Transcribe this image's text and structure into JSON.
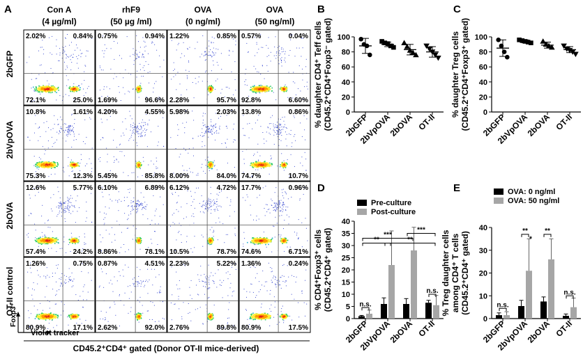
{
  "panel_labels": [
    "A",
    "B",
    "C",
    "D",
    "E"
  ],
  "A": {
    "columns": [
      {
        "name": "Con A",
        "sub": "(4 µg/ml)"
      },
      {
        "name": "rhF9",
        "sub": "(50 µg /ml)"
      },
      {
        "name": "OVA",
        "sub": "(0 ng/ml)"
      },
      {
        "name": "OVA",
        "sub": "(50 ng/ml)"
      }
    ],
    "rows": [
      "2bGFP",
      "2bVpOVA",
      "2bOVA",
      "OT-II control"
    ],
    "quadrants": [
      [
        [
          "2.02%",
          "0.84%",
          "72.1%",
          "25.0%"
        ],
        [
          "0.75%",
          "0.94%",
          "1.69%",
          "96.6%"
        ],
        [
          "1.22%",
          "0.85%",
          "2.28%",
          "95.7%"
        ],
        [
          "0.57%",
          "0.04%",
          "92.8%",
          "6.60%"
        ]
      ],
      [
        [
          "10.8%",
          "1.61%",
          "75.3%",
          "12.3%"
        ],
        [
          "4.20%",
          "4.55%",
          "5.45%",
          "85.8%"
        ],
        [
          "5.98%",
          "2.03%",
          "8.00%",
          "84.0%"
        ],
        [
          "13.8%",
          "0.86%",
          "74.7%",
          "10.7%"
        ]
      ],
      [
        [
          "12.6%",
          "5.77%",
          "57.4%",
          "24.2%"
        ],
        [
          "6.10%",
          "6.89%",
          "8.86%",
          "78.1%"
        ],
        [
          "6.12%",
          "4.72%",
          "10.5%",
          "78.7%"
        ],
        [
          "17.7%",
          "0.96%",
          "74.6%",
          "6.71%"
        ]
      ],
      [
        [
          "1.26%",
          "0.75%",
          "80.9%",
          "17.1%"
        ],
        [
          "0.87%",
          "4.51%",
          "2.62%",
          "92.0%"
        ],
        [
          "2.23%",
          "5.22%",
          "2.76%",
          "89.8%"
        ],
        [
          "1.36%",
          "0.24%",
          "80.9%",
          "17.5%"
        ]
      ]
    ],
    "y_axis": "Foxp3⁺",
    "x_axis": "Violet tracker",
    "footer": "CD45.2⁺CD4⁺ gated (Donor OT-II mice-derived)"
  },
  "chart_data": [
    {
      "panel": "B",
      "type": "scatter",
      "categories": [
        "2bGFP",
        "2bVpOVA",
        "2bOVA",
        "OT-II"
      ],
      "ylabel": [
        "% daughter CD4⁺ Teff cells",
        "(CD45.2⁺CD4⁺Foxp3⁻ gated)"
      ],
      "ylim": [
        0,
        100
      ],
      "yticks": [
        0,
        20,
        40,
        60,
        80,
        100
      ],
      "markers": [
        "circle",
        "square",
        "triangle",
        "inverted-triangle"
      ],
      "points": [
        [
          97,
          90,
          88,
          76
        ],
        [
          94,
          92,
          91,
          88,
          86
        ],
        [
          92,
          87,
          82,
          79,
          76
        ],
        [
          88,
          84,
          80,
          76,
          72
        ]
      ],
      "mean": [
        88,
        90,
        83,
        80
      ],
      "sd": [
        10,
        3,
        7,
        7
      ]
    },
    {
      "panel": "C",
      "type": "scatter",
      "categories": [
        "2bGFP",
        "2bVpOVA",
        "2bOVA",
        "OT-II"
      ],
      "ylabel": [
        "% daughter Treg  cells",
        "(CD45.2⁺CD4⁺Foxp3⁺ gated)"
      ],
      "ylim": [
        0,
        100
      ],
      "yticks": [
        0,
        20,
        40,
        60,
        80,
        100
      ],
      "markers": [
        "circle",
        "square",
        "triangle",
        "inverted-triangle"
      ],
      "points": [
        [
          96,
          88,
          80,
          73
        ],
        [
          96,
          95,
          94,
          93,
          92
        ],
        [
          94,
          90,
          88,
          86
        ],
        [
          88,
          84,
          82,
          80,
          77
        ]
      ],
      "mean": [
        85,
        94,
        89,
        83
      ],
      "sd": [
        11,
        2,
        4,
        4
      ]
    },
    {
      "panel": "D",
      "type": "bar",
      "categories": [
        "2bGFP",
        "2bVpOVA",
        "2bOVA",
        "OT-II"
      ],
      "ylabel": [
        "% CD4⁺Foxp3⁺ cells",
        "(CD45.2⁺CD4⁺ gated)"
      ],
      "ylim": [
        0,
        40
      ],
      "yticks": [
        0,
        5,
        10,
        15,
        20,
        25,
        30,
        35,
        40
      ],
      "series": [
        {
          "name": "Pre-culture",
          "color": "#000000",
          "values": [
            1,
            6,
            6,
            6.5
          ],
          "err": [
            0.3,
            2.5,
            2.2,
            1
          ]
        },
        {
          "name": "Post-culture",
          "color": "#a6a6a6",
          "values": [
            2,
            22,
            28,
            5.5
          ],
          "err": [
            1.5,
            14,
            9.5,
            4
          ]
        }
      ],
      "sig": [
        {
          "x1": 0,
          "x2": 1,
          "y": 31,
          "label": "**"
        },
        {
          "x1": 0,
          "x2": 2,
          "y": 33,
          "label": "***"
        },
        {
          "x1": 1,
          "x2": 3,
          "y": 31,
          "label": "**"
        },
        {
          "x1": 2,
          "x2": 3,
          "y": 35,
          "label": "***"
        },
        {
          "x1": 0,
          "x2": 0,
          "y": 4.5,
          "label": "n.s.",
          "pair": true
        },
        {
          "x1": 3,
          "x2": 3,
          "y": 10,
          "label": "n.s.",
          "pair": true
        }
      ]
    },
    {
      "panel": "E",
      "type": "bar",
      "categories": [
        "2bGFP",
        "2bVpOVA",
        "2bOVA",
        "OT-II"
      ],
      "ylabel": [
        "% Treg daughter cells",
        "among CD4⁺ T cells",
        "(CD45.2⁺CD4⁺ gated)"
      ],
      "ylim": [
        0,
        40
      ],
      "yticks": [
        0,
        10,
        20,
        30,
        40
      ],
      "series": [
        {
          "name": "OVA: 0 ng/ml",
          "color": "#000000",
          "values": [
            1.5,
            5.5,
            7.5,
            1.2
          ],
          "err": [
            1,
            2.5,
            2,
            0.8
          ]
        },
        {
          "name": "OVA: 50 ng/ml",
          "color": "#a6a6a6",
          "values": [
            1.5,
            21,
            26,
            5
          ],
          "err": [
            1.5,
            14,
            9,
            4
          ]
        }
      ],
      "sig": [
        {
          "x1": 0,
          "x2": 0,
          "y": 4.5,
          "label": "n.s.",
          "pair": true
        },
        {
          "x1": 1,
          "x2": 1,
          "y": 37,
          "label": "**",
          "pair": true
        },
        {
          "x1": 2,
          "x2": 2,
          "y": 37,
          "label": "**",
          "pair": true
        },
        {
          "x1": 3,
          "x2": 3,
          "y": 10,
          "label": "n.s.",
          "pair": true
        },
        {
          "x1": 1.25,
          "x2": 1.25,
          "y": 34,
          "label": "*",
          "star": true
        }
      ]
    }
  ]
}
